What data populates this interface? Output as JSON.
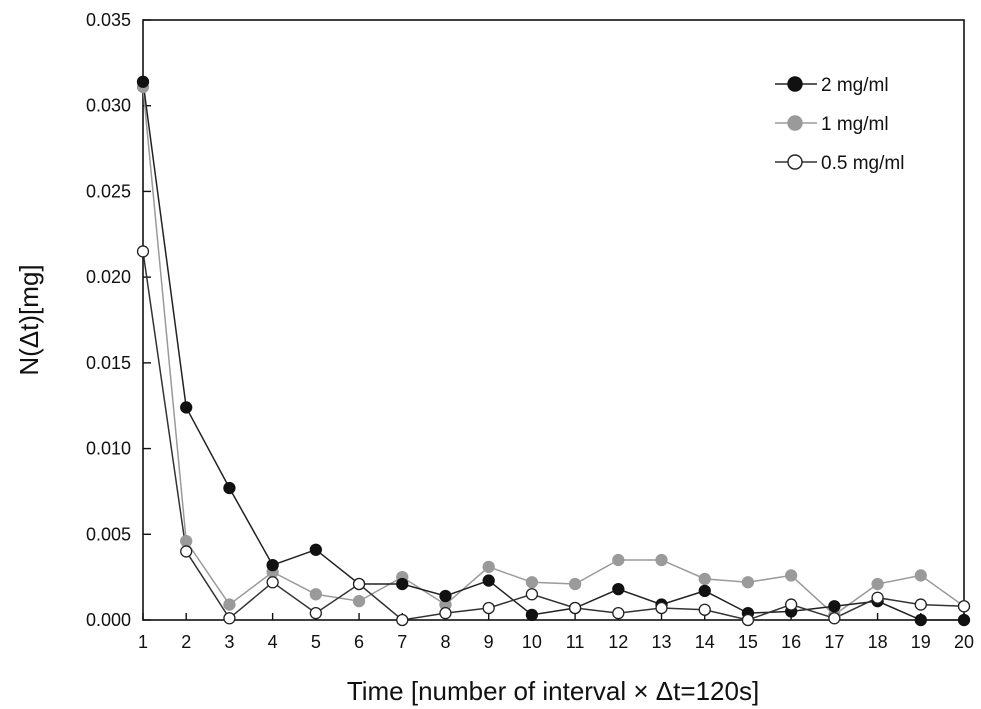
{
  "chart_data": {
    "type": "line",
    "title": "",
    "xlabel": "Time [number of interval × Δt=120s]",
    "ylabel": "N(Δt)[mg]",
    "x": [
      1,
      2,
      3,
      4,
      5,
      6,
      7,
      8,
      9,
      10,
      11,
      12,
      13,
      14,
      15,
      16,
      17,
      18,
      19,
      20
    ],
    "xlim": [
      1,
      20
    ],
    "ylim": [
      0,
      0.035
    ],
    "yticks": [
      "0.000",
      "0.005",
      "0.010",
      "0.015",
      "0.020",
      "0.025",
      "0.030",
      "0.035"
    ],
    "xticks": [
      "1",
      "2",
      "3",
      "4",
      "5",
      "6",
      "7",
      "8",
      "9",
      "10",
      "11",
      "12",
      "13",
      "14",
      "15",
      "16",
      "17",
      "18",
      "19",
      "20"
    ],
    "grid": false,
    "legend_position": "top-right",
    "series": [
      {
        "name": "2 mg/ml",
        "marker": "filled-black",
        "color": "#111111",
        "values": [
          0.0314,
          0.0124,
          0.0077,
          0.0032,
          0.0041,
          0.0021,
          0.0021,
          0.0014,
          0.0023,
          0.0003,
          0.0007,
          0.0018,
          0.0009,
          0.0017,
          0.0004,
          0.0005,
          0.0008,
          0.0011,
          0.0,
          0.0
        ]
      },
      {
        "name": "1 mg/ml",
        "marker": "filled-gray",
        "color": "#999999",
        "values": [
          0.0311,
          0.0046,
          0.0009,
          0.0028,
          0.0015,
          0.0011,
          0.0025,
          0.0009,
          0.0031,
          0.0022,
          0.0021,
          0.0035,
          0.0035,
          0.0024,
          0.0022,
          0.0026,
          0.0003,
          0.0021,
          0.0026,
          0.0008
        ]
      },
      {
        "name": "0.5 mg/ml",
        "marker": "open-white",
        "color": "#333333",
        "values": [
          0.0215,
          0.004,
          0.0001,
          0.0022,
          0.0004,
          0.0021,
          0.0,
          0.0004,
          0.0007,
          0.0015,
          0.0007,
          0.0004,
          0.0007,
          0.0006,
          0.0,
          0.0009,
          0.0001,
          0.0013,
          0.0009,
          0.0008
        ]
      }
    ]
  }
}
